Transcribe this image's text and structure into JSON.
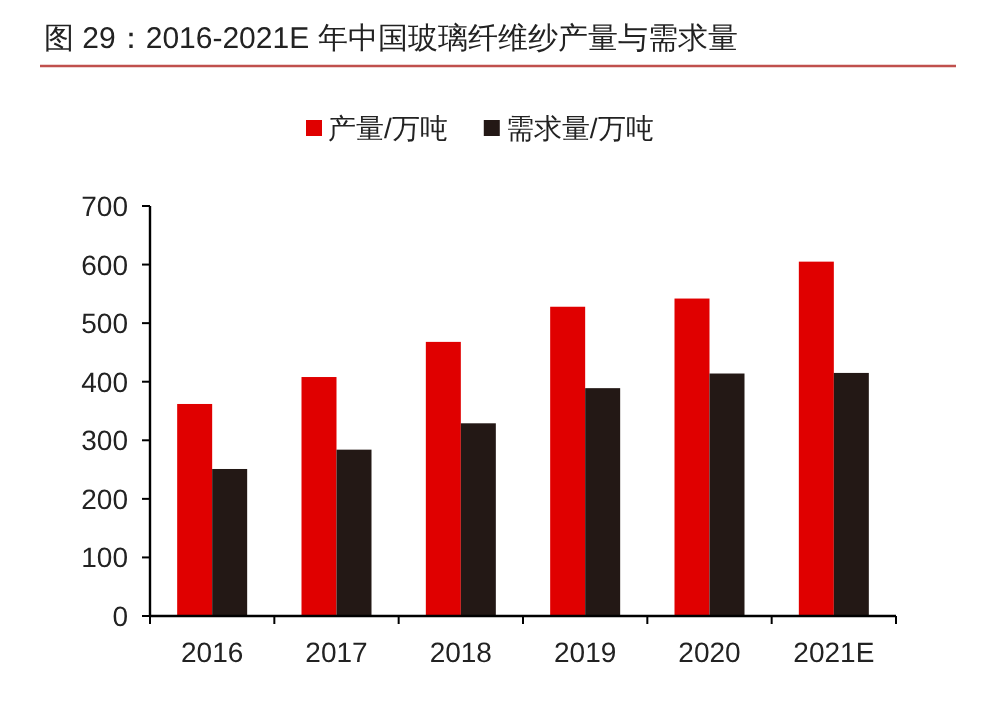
{
  "chart_data": {
    "type": "bar",
    "title": "图 29：2016-2021E 年中国玻璃纤维纱产量与需求量",
    "categories": [
      "2016",
      "2017",
      "2018",
      "2019",
      "2020",
      "2021E"
    ],
    "series": [
      {
        "name": "产量/万吨",
        "color": "#e00000",
        "values": [
          362,
          408,
          468,
          528,
          542,
          605
        ]
      },
      {
        "name": "需求量/万吨",
        "color": "#231815",
        "values": [
          251,
          284,
          329,
          389,
          414,
          415
        ]
      }
    ],
    "ylim": [
      0,
      700
    ],
    "yticks": [
      0,
      100,
      200,
      300,
      400,
      500,
      600,
      700
    ],
    "grid": false,
    "legend": "top"
  }
}
